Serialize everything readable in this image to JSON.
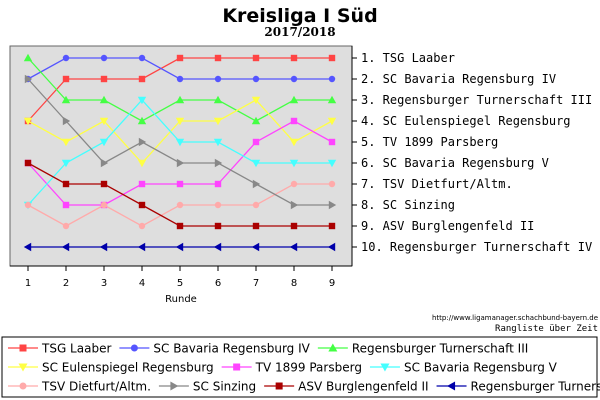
{
  "chart_data": {
    "type": "line",
    "title": "Kreisliga I Süd",
    "subtitle": "2017/2018",
    "xlabel": "Runde",
    "ylabel": "",
    "x": [
      1,
      2,
      3,
      4,
      5,
      6,
      7,
      8,
      9
    ],
    "ylim": [
      1,
      10
    ],
    "y_inverted": true,
    "grid": false,
    "legend_position": "bottom",
    "rank_labels": [
      "1. TSG Laaber",
      "2. SC Bavaria Regensburg IV",
      "3. Regensburger Turnerschaft III",
      "4. SC Eulenspiegel Regensburg",
      "5. TV 1899 Parsberg",
      "6. SC Bavaria Regensburg V",
      "7. TSV Dietfurt/Altm.",
      "8. SC Sinzing",
      "9. ASV Burglengenfeld II",
      "10. Regensburger Turnerschaft IV"
    ],
    "series": [
      {
        "name": "TSG Laaber",
        "color": "#ff4444",
        "marker": "square",
        "values": [
          4,
          2,
          2,
          2,
          1,
          1,
          1,
          1,
          1
        ]
      },
      {
        "name": "SC Bavaria Regensburg IV",
        "color": "#5555ff",
        "marker": "circle",
        "values": [
          2,
          1,
          1,
          1,
          2,
          2,
          2,
          2,
          2
        ]
      },
      {
        "name": "Regensburger Turnerschaft III",
        "color": "#44ff44",
        "marker": "triangle-up",
        "values": [
          1,
          3,
          3,
          4,
          3,
          3,
          4,
          3,
          3
        ]
      },
      {
        "name": "SC Eulenspiegel Regensburg",
        "color": "#ffff44",
        "marker": "triangle-down",
        "values": [
          4,
          5,
          4,
          6,
          4,
          4,
          3,
          5,
          4
        ]
      },
      {
        "name": "TV 1899 Parsberg",
        "color": "#ff44ff",
        "marker": "square",
        "values": [
          6,
          8,
          8,
          7,
          7,
          7,
          5,
          4,
          5
        ]
      },
      {
        "name": "SC Bavaria Regensburg V",
        "color": "#44ffff",
        "marker": "triangle-down",
        "values": [
          8,
          6,
          5,
          3,
          5,
          5,
          6,
          6,
          6
        ]
      },
      {
        "name": "TSV Dietfurt/Altm.",
        "color": "#ffaaaa",
        "marker": "circle",
        "values": [
          8,
          9,
          8,
          9,
          8,
          8,
          8,
          7,
          7
        ]
      },
      {
        "name": "SC Sinzing",
        "color": "#888888",
        "marker": "triangle-right",
        "values": [
          2,
          4,
          6,
          5,
          6,
          6,
          7,
          8,
          8
        ]
      },
      {
        "name": "ASV Burglengenfeld II",
        "color": "#aa0000",
        "marker": "square",
        "values": [
          6,
          7,
          7,
          8,
          9,
          9,
          9,
          9,
          9
        ]
      },
      {
        "name": "Regensburger Turnerschaft IV",
        "color": "#0000aa",
        "marker": "triangle-left",
        "values": [
          10,
          10,
          10,
          10,
          10,
          10,
          10,
          10,
          10
        ]
      }
    ]
  },
  "footer": {
    "url": "http://www.ligamanager.schachbund-bayern.de",
    "caption": "Rangliste über Zeit"
  }
}
